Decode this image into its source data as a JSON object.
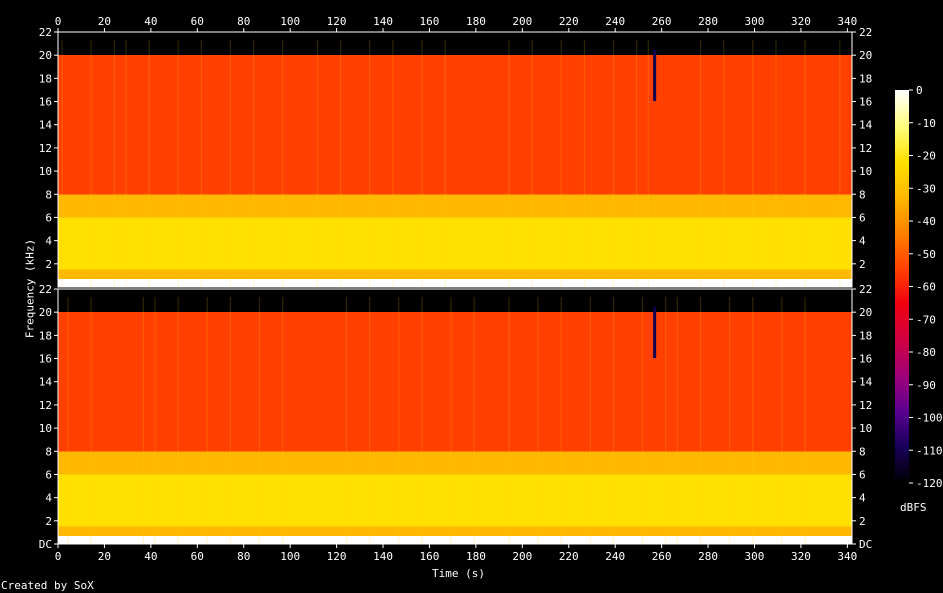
{
  "chart_data": {
    "type": "heatmap",
    "title": "",
    "xlabel": "Time (s)",
    "ylabel": "Frequency (kHz)",
    "xlim": [
      0,
      342
    ],
    "ylim": [
      0,
      22
    ],
    "x_ticks": [
      "0",
      "20",
      "40",
      "60",
      "80",
      "100",
      "120",
      "140",
      "160",
      "180",
      "200",
      "220",
      "240",
      "260",
      "280",
      "300",
      "320",
      "340"
    ],
    "y_ticks_top_channel": [
      "22",
      "20",
      "18",
      "16",
      "14",
      "12",
      "10",
      "8",
      "6",
      "4",
      "2"
    ],
    "y_ticks_bottom_channel": [
      "22",
      "20",
      "18",
      "16",
      "14",
      "12",
      "10",
      "8",
      "6",
      "4",
      "2",
      "DC"
    ],
    "channels": 2,
    "colorbar": {
      "label": "dBFS",
      "range": [
        -120,
        0
      ],
      "ticks": [
        "0",
        "-10",
        "-20",
        "-30",
        "-40",
        "-50",
        "-60",
        "-70",
        "-80",
        "-90",
        "-100",
        "-110",
        "-120"
      ],
      "colors": [
        "#000000",
        "#17005a",
        "#5a0090",
        "#a0007a",
        "#d00040",
        "#f00010",
        "#ff4000",
        "#ff8000",
        "#ffb800",
        "#ffe000",
        "#ffff80",
        "#ffffff"
      ]
    },
    "spectral_profile": [
      {
        "band_khz": [
          0,
          0.7
        ],
        "dbfs": -5
      },
      {
        "band_khz": [
          0.7,
          1.5
        ],
        "dbfs": -35
      },
      {
        "band_khz": [
          1.5,
          4.5
        ],
        "dbfs": -18
      },
      {
        "band_khz": [
          4.5,
          6
        ],
        "dbfs": -25
      },
      {
        "band_khz": [
          6,
          8
        ],
        "dbfs": -38
      },
      {
        "band_khz": [
          8,
          20
        ],
        "dbfs": -50
      },
      {
        "band_khz": [
          20,
          22
        ],
        "dbfs": -120
      }
    ],
    "notable_events": [
      {
        "time_s": 257,
        "description": "gap"
      }
    ]
  },
  "footer": {
    "credit": "Created by SoX"
  }
}
